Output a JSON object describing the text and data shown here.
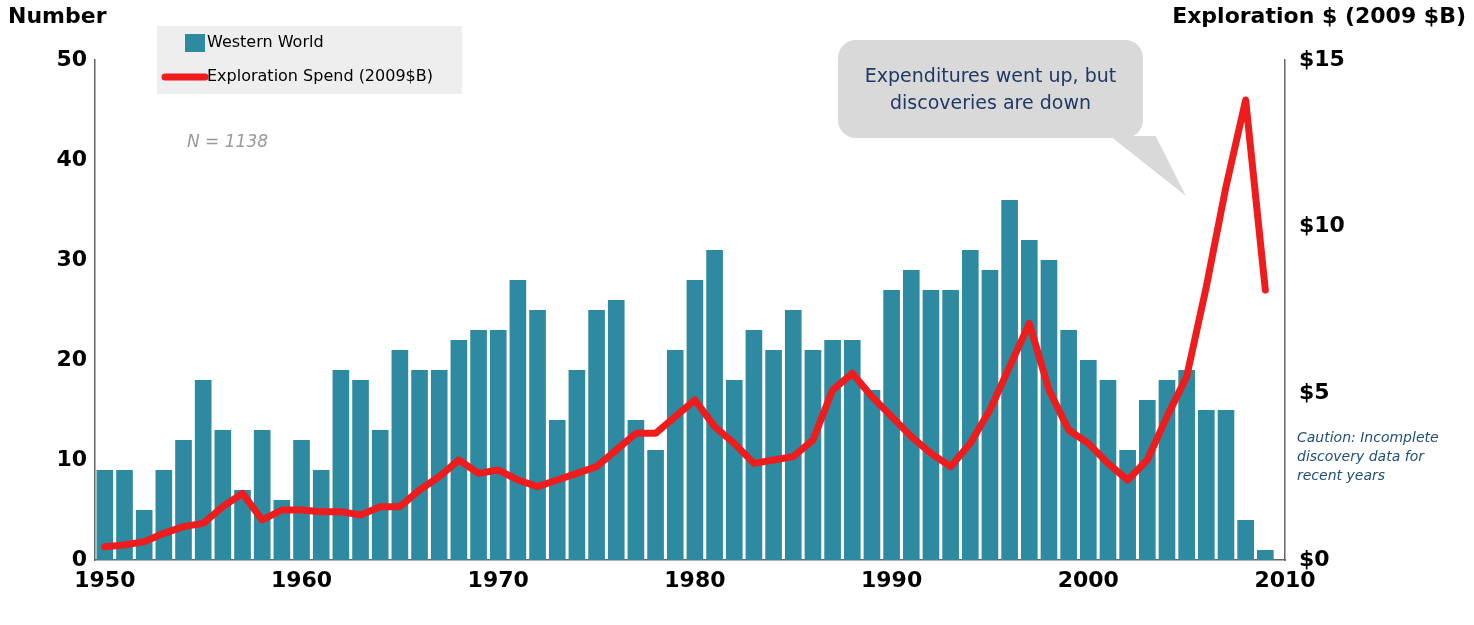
{
  "chart_data": {
    "type": "bar",
    "ylabel": "Number",
    "y2label": "Exploration $ (2009 $B)",
    "x": [
      1950,
      1951,
      1952,
      1953,
      1954,
      1955,
      1956,
      1957,
      1958,
      1959,
      1960,
      1961,
      1962,
      1963,
      1964,
      1965,
      1966,
      1967,
      1968,
      1969,
      1970,
      1971,
      1972,
      1973,
      1974,
      1975,
      1976,
      1977,
      1978,
      1979,
      1980,
      1981,
      1982,
      1983,
      1984,
      1985,
      1986,
      1987,
      1988,
      1989,
      1990,
      1991,
      1992,
      1993,
      1994,
      1995,
      1996,
      1997,
      1998,
      1999,
      2000,
      2001,
      2002,
      2003,
      2004,
      2005,
      2006,
      2007,
      2008,
      2009
    ],
    "series": [
      {
        "name": "Western World",
        "color": "#2e8aa0",
        "values": [
          9,
          9,
          5,
          9,
          12,
          18,
          13,
          7,
          13,
          6,
          12,
          9,
          19,
          18,
          13,
          21,
          19,
          19,
          22,
          23,
          23,
          28,
          25,
          14,
          19,
          25,
          26,
          14,
          11,
          21,
          28,
          31,
          18,
          23,
          21,
          25,
          21,
          22,
          22,
          17,
          27,
          29,
          27,
          27,
          31,
          29,
          36,
          32,
          30,
          23,
          20,
          18,
          11,
          16,
          18,
          19,
          15,
          15,
          4,
          1
        ]
      },
      {
        "name": "Exploration Spend (2009$B)",
        "type": "line",
        "axis": "y2",
        "color": "#ee1c1c",
        "values": [
          0.4,
          0.45,
          0.55,
          0.8,
          1.0,
          1.1,
          1.6,
          2.0,
          1.2,
          1.5,
          1.5,
          1.45,
          1.45,
          1.35,
          1.6,
          1.6,
          2.1,
          2.5,
          3.0,
          2.6,
          2.7,
          2.4,
          2.2,
          2.4,
          2.6,
          2.8,
          3.3,
          3.8,
          3.8,
          4.3,
          4.8,
          4.0,
          3.5,
          2.9,
          3.0,
          3.1,
          3.6,
          5.1,
          5.6,
          4.9,
          4.3,
          3.7,
          3.2,
          2.8,
          3.5,
          4.5,
          5.8,
          7.1,
          5.1,
          3.9,
          3.5,
          2.9,
          2.4,
          3.0,
          4.3,
          5.5,
          8.2,
          11.2,
          13.8,
          8.1
        ]
      }
    ],
    "xlim": [
      1949.5,
      2010
    ],
    "xticks": [
      1950,
      1960,
      1970,
      1980,
      1990,
      2000,
      2010
    ],
    "ylim": [
      0,
      50
    ],
    "yticks": [
      0,
      10,
      20,
      30,
      40,
      50
    ],
    "y2lim": [
      0,
      15
    ],
    "y2ticks": [
      {
        "value": 0,
        "label": "$0"
      },
      {
        "value": 5,
        "label": "$5"
      },
      {
        "value": 10,
        "label": "$10"
      },
      {
        "value": 15,
        "label": "$15"
      }
    ],
    "legend": "top left",
    "grid": false,
    "marker": "none",
    "line_style": "solid",
    "annotations": [
      "N = 1138",
      "Expenditures went up, but discoveries are down",
      "Caution:  Incomplete discovery data for recent years"
    ]
  }
}
